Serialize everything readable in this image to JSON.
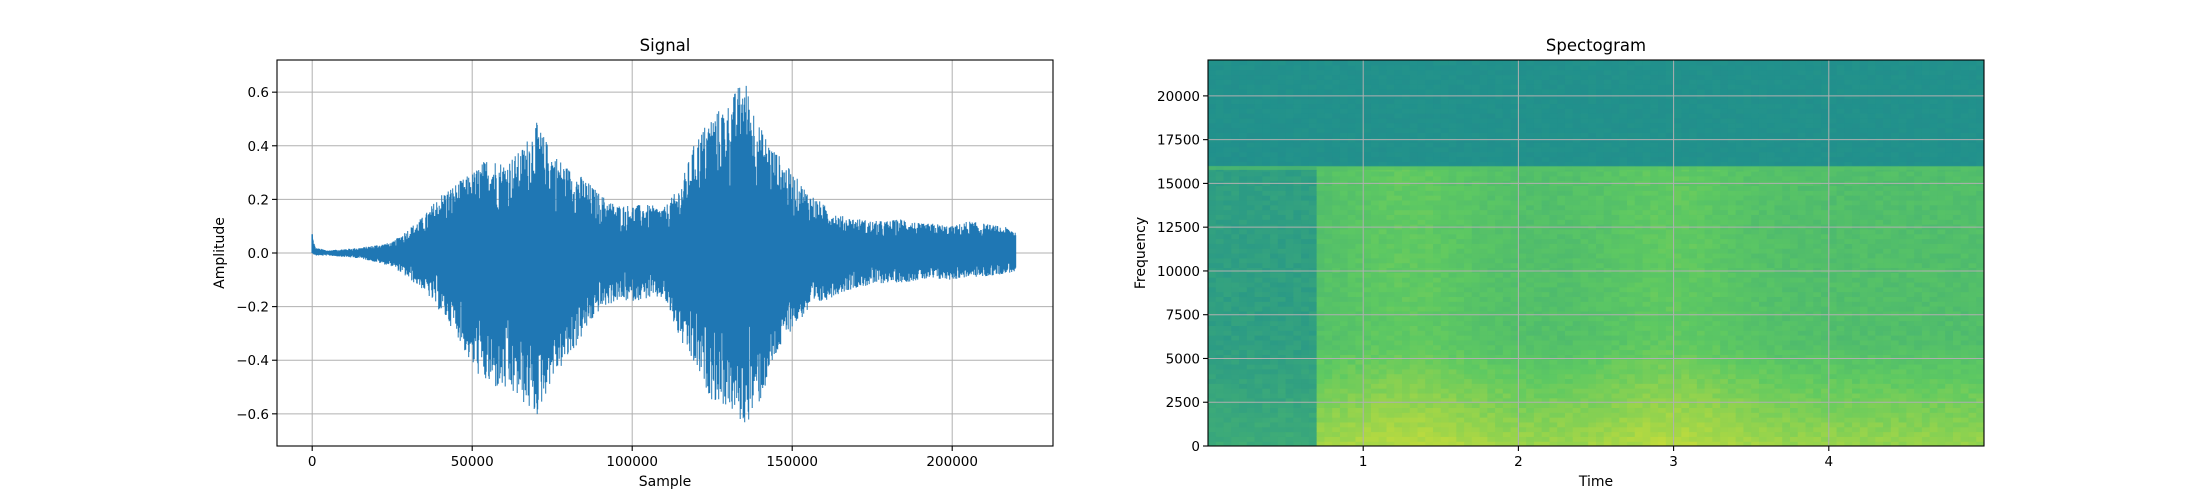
{
  "chart_data": [
    {
      "type": "line",
      "title": "Signal",
      "xlabel": "Sample",
      "ylabel": "Amplitude",
      "xlim": [
        -11000,
        231500
      ],
      "ylim": [
        -0.72,
        0.72
      ],
      "xticks": [
        0,
        50000,
        100000,
        150000,
        200000
      ],
      "xtick_labels": [
        "0",
        "50000",
        "100000",
        "150000",
        "200000"
      ],
      "yticks": [
        -0.6,
        -0.4,
        -0.2,
        0.0,
        0.2,
        0.4,
        0.6
      ],
      "ytick_labels": [
        "−0.6",
        "−0.4",
        "−0.2",
        "0.0",
        "0.2",
        "0.4",
        "0.6"
      ],
      "grid": true,
      "color": "#1f77b4",
      "series": [
        {
          "envelope_upper": {
            "x": [
              0,
              1000,
              5000,
              15000,
              25000,
              35000,
              40000,
              45000,
              50000,
              55000,
              60000,
              65000,
              70000,
              75000,
              80000,
              85000,
              90000,
              95000,
              100000,
              105000,
              110000,
              115000,
              120000,
              125000,
              130000,
              135000,
              140000,
              145000,
              150000,
              155000,
              160000,
              165000,
              170000,
              175000,
              180000,
              185000,
              190000,
              195000,
              200000,
              205000,
              210000,
              215000,
              220000
            ],
            "y": [
              0.07,
              0.02,
              0.01,
              0.02,
              0.04,
              0.14,
              0.22,
              0.26,
              0.3,
              0.36,
              0.34,
              0.38,
              0.49,
              0.38,
              0.32,
              0.28,
              0.22,
              0.18,
              0.18,
              0.18,
              0.17,
              0.25,
              0.43,
              0.52,
              0.56,
              0.66,
              0.47,
              0.38,
              0.3,
              0.23,
              0.18,
              0.14,
              0.13,
              0.12,
              0.12,
              0.13,
              0.11,
              0.11,
              0.1,
              0.12,
              0.11,
              0.1,
              0.09
            ]
          },
          "envelope_lower": {
            "x": [
              0,
              1000,
              5000,
              15000,
              25000,
              35000,
              40000,
              45000,
              50000,
              55000,
              60000,
              65000,
              70000,
              75000,
              80000,
              85000,
              90000,
              95000,
              100000,
              105000,
              110000,
              115000,
              120000,
              125000,
              130000,
              135000,
              140000,
              145000,
              150000,
              155000,
              160000,
              165000,
              170000,
              175000,
              180000,
              185000,
              190000,
              195000,
              200000,
              205000,
              210000,
              215000,
              220000
            ],
            "y": [
              0.0,
              -0.01,
              -0.01,
              -0.02,
              -0.05,
              -0.14,
              -0.22,
              -0.3,
              -0.43,
              -0.5,
              -0.52,
              -0.55,
              -0.62,
              -0.47,
              -0.4,
              -0.3,
              -0.21,
              -0.18,
              -0.18,
              -0.17,
              -0.17,
              -0.33,
              -0.44,
              -0.55,
              -0.58,
              -0.65,
              -0.56,
              -0.39,
              -0.28,
              -0.22,
              -0.18,
              -0.15,
              -0.13,
              -0.12,
              -0.11,
              -0.11,
              -0.1,
              -0.1,
              -0.1,
              -0.09,
              -0.09,
              -0.08,
              -0.07
            ]
          }
        }
      ]
    },
    {
      "type": "heatmap",
      "title": "Spectogram",
      "xlabel": "Time",
      "ylabel": "Frequency",
      "xlim": [
        0,
        5.0
      ],
      "ylim": [
        0,
        22050
      ],
      "xticks": [
        1,
        2,
        3,
        4
      ],
      "xtick_labels": [
        "1",
        "2",
        "3",
        "4"
      ],
      "yticks": [
        0,
        2500,
        5000,
        7500,
        10000,
        12500,
        15000,
        17500,
        20000
      ],
      "ytick_labels": [
        "0",
        "2500",
        "5000",
        "7500",
        "10000",
        "12500",
        "15000",
        "17500",
        "20000"
      ],
      "grid": true,
      "colormap": "viridis",
      "cutoff_frequency": 16000,
      "sound_onset_time": 0.7
    }
  ]
}
